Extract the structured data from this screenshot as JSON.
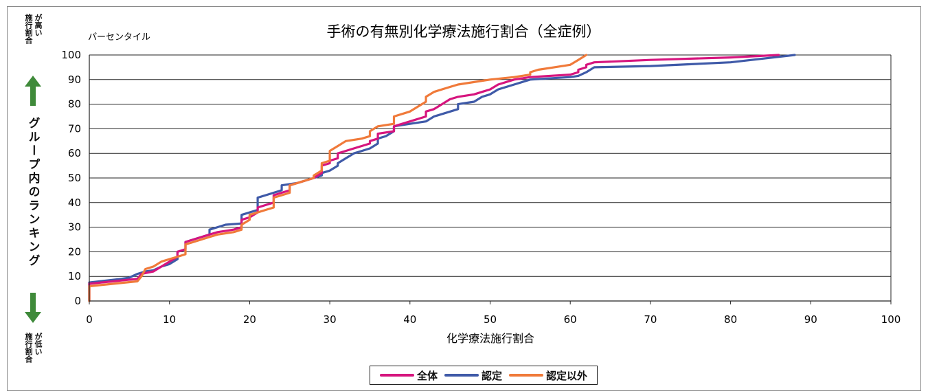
{
  "side_labels": {
    "top_a": "施行割合",
    "top_b": "が高い",
    "main": "グループ内のランキング",
    "bottom_a": "施行割合",
    "bottom_b": "が低い",
    "arrow_color": "#3f8a3a"
  },
  "chart_data": {
    "type": "line",
    "title": "手術の有無別化学療法施行割合（全症例）",
    "xlabel": "化学療法施行割合",
    "ylabel": "パーセンタイル",
    "xlim": [
      0,
      100
    ],
    "ylim": [
      0,
      100
    ],
    "xticks": [
      "0",
      "10",
      "20",
      "30",
      "40",
      "50",
      "60",
      "70",
      "80",
      "90",
      "100"
    ],
    "yticks": [
      "0",
      "10",
      "20",
      "30",
      "40",
      "50",
      "60",
      "70",
      "80",
      "90",
      "100"
    ],
    "grid": true,
    "legend_position": "bottom",
    "series": [
      {
        "name": "全体",
        "color": "#d6157e",
        "points": [
          [
            0,
            0
          ],
          [
            0,
            7
          ],
          [
            6,
            9
          ],
          [
            6.5,
            11
          ],
          [
            8,
            12
          ],
          [
            9,
            14
          ],
          [
            10,
            16
          ],
          [
            11,
            18
          ],
          [
            11,
            20
          ],
          [
            12,
            21
          ],
          [
            12,
            24
          ],
          [
            13,
            25
          ],
          [
            14,
            26
          ],
          [
            15,
            27
          ],
          [
            16,
            28
          ],
          [
            18,
            29
          ],
          [
            19,
            30
          ],
          [
            19,
            33
          ],
          [
            20,
            34
          ],
          [
            21,
            36
          ],
          [
            21,
            38
          ],
          [
            22,
            39
          ],
          [
            23,
            40
          ],
          [
            23,
            43
          ],
          [
            24,
            44
          ],
          [
            25,
            45
          ],
          [
            25,
            47
          ],
          [
            27,
            49
          ],
          [
            28,
            50
          ],
          [
            29,
            52
          ],
          [
            29,
            55
          ],
          [
            30,
            56
          ],
          [
            30,
            57
          ],
          [
            31,
            58
          ],
          [
            31,
            60
          ],
          [
            32,
            61
          ],
          [
            33,
            62
          ],
          [
            35,
            64
          ],
          [
            35,
            65
          ],
          [
            36,
            66
          ],
          [
            36,
            68
          ],
          [
            38,
            69
          ],
          [
            38,
            71
          ],
          [
            40,
            73
          ],
          [
            42,
            75
          ],
          [
            42,
            77
          ],
          [
            43,
            78
          ],
          [
            44,
            80
          ],
          [
            45,
            82
          ],
          [
            46,
            83
          ],
          [
            48,
            84
          ],
          [
            49,
            85
          ],
          [
            50,
            86
          ],
          [
            51,
            88
          ],
          [
            53,
            90
          ],
          [
            55,
            91
          ],
          [
            60,
            92
          ],
          [
            61,
            93
          ],
          [
            61,
            94
          ],
          [
            62,
            95
          ],
          [
            62,
            96
          ],
          [
            63,
            97
          ],
          [
            70,
            98
          ],
          [
            80,
            99
          ],
          [
            86,
            100
          ]
        ]
      },
      {
        "name": "認定",
        "color": "#3f5aa8",
        "points": [
          [
            0,
            0
          ],
          [
            0,
            7.5
          ],
          [
            4,
            9
          ],
          [
            5,
            9.5
          ],
          [
            6,
            11
          ],
          [
            7,
            12
          ],
          [
            8,
            12.5
          ],
          [
            9,
            14
          ],
          [
            10,
            15
          ],
          [
            11,
            17
          ],
          [
            11,
            20
          ],
          [
            12,
            21
          ],
          [
            12,
            24
          ],
          [
            13,
            25
          ],
          [
            14,
            26
          ],
          [
            15,
            27
          ],
          [
            15,
            29
          ],
          [
            16,
            30
          ],
          [
            17,
            31
          ],
          [
            19,
            31.5
          ],
          [
            19,
            35
          ],
          [
            21,
            37
          ],
          [
            21,
            42
          ],
          [
            22,
            43
          ],
          [
            24,
            45
          ],
          [
            24,
            47
          ],
          [
            26,
            48
          ],
          [
            27,
            49
          ],
          [
            29,
            51
          ],
          [
            29,
            52
          ],
          [
            30,
            53
          ],
          [
            31,
            55
          ],
          [
            31,
            56
          ],
          [
            32,
            58
          ],
          [
            33,
            60
          ],
          [
            34,
            61
          ],
          [
            35,
            62
          ],
          [
            36,
            64
          ],
          [
            36,
            66
          ],
          [
            37,
            67
          ],
          [
            38,
            69
          ],
          [
            38,
            71
          ],
          [
            40,
            72
          ],
          [
            42,
            73
          ],
          [
            43,
            75
          ],
          [
            46,
            78
          ],
          [
            46,
            80
          ],
          [
            48,
            81
          ],
          [
            49,
            83
          ],
          [
            50,
            84
          ],
          [
            51,
            86
          ],
          [
            53,
            88
          ],
          [
            55,
            90
          ],
          [
            60,
            91
          ],
          [
            61,
            91.5
          ],
          [
            62,
            93
          ],
          [
            63,
            95
          ],
          [
            70,
            95.5
          ],
          [
            80,
            97
          ],
          [
            88,
            100
          ]
        ]
      },
      {
        "name": "認定以外",
        "color": "#f07a3a",
        "points": [
          [
            0,
            0
          ],
          [
            0,
            6
          ],
          [
            6,
            8
          ],
          [
            6.5,
            10
          ],
          [
            7,
            13
          ],
          [
            8,
            14
          ],
          [
            9,
            16
          ],
          [
            10,
            17
          ],
          [
            11,
            18
          ],
          [
            12,
            19
          ],
          [
            12,
            23
          ],
          [
            13,
            24
          ],
          [
            14,
            25
          ],
          [
            15,
            26
          ],
          [
            16,
            27
          ],
          [
            18,
            28
          ],
          [
            19,
            29
          ],
          [
            19,
            31
          ],
          [
            20,
            33
          ],
          [
            20,
            35
          ],
          [
            21,
            36
          ],
          [
            22,
            37
          ],
          [
            23,
            38
          ],
          [
            23,
            42
          ],
          [
            24,
            43
          ],
          [
            25,
            44
          ],
          [
            25,
            47
          ],
          [
            26,
            48
          ],
          [
            28,
            50
          ],
          [
            28,
            51
          ],
          [
            29,
            53
          ],
          [
            29,
            56
          ],
          [
            30,
            57
          ],
          [
            30,
            61
          ],
          [
            31,
            63
          ],
          [
            32,
            65
          ],
          [
            34,
            66
          ],
          [
            35,
            67
          ],
          [
            35,
            69
          ],
          [
            36,
            71
          ],
          [
            38,
            72
          ],
          [
            38,
            75
          ],
          [
            40,
            77
          ],
          [
            42,
            81
          ],
          [
            42,
            83
          ],
          [
            43,
            85
          ],
          [
            45,
            87
          ],
          [
            46,
            88
          ],
          [
            50,
            90
          ],
          [
            53,
            91
          ],
          [
            55,
            92
          ],
          [
            55,
            93
          ],
          [
            56,
            94
          ],
          [
            58,
            95
          ],
          [
            60,
            96
          ],
          [
            61,
            98
          ],
          [
            62,
            100
          ]
        ]
      }
    ]
  }
}
